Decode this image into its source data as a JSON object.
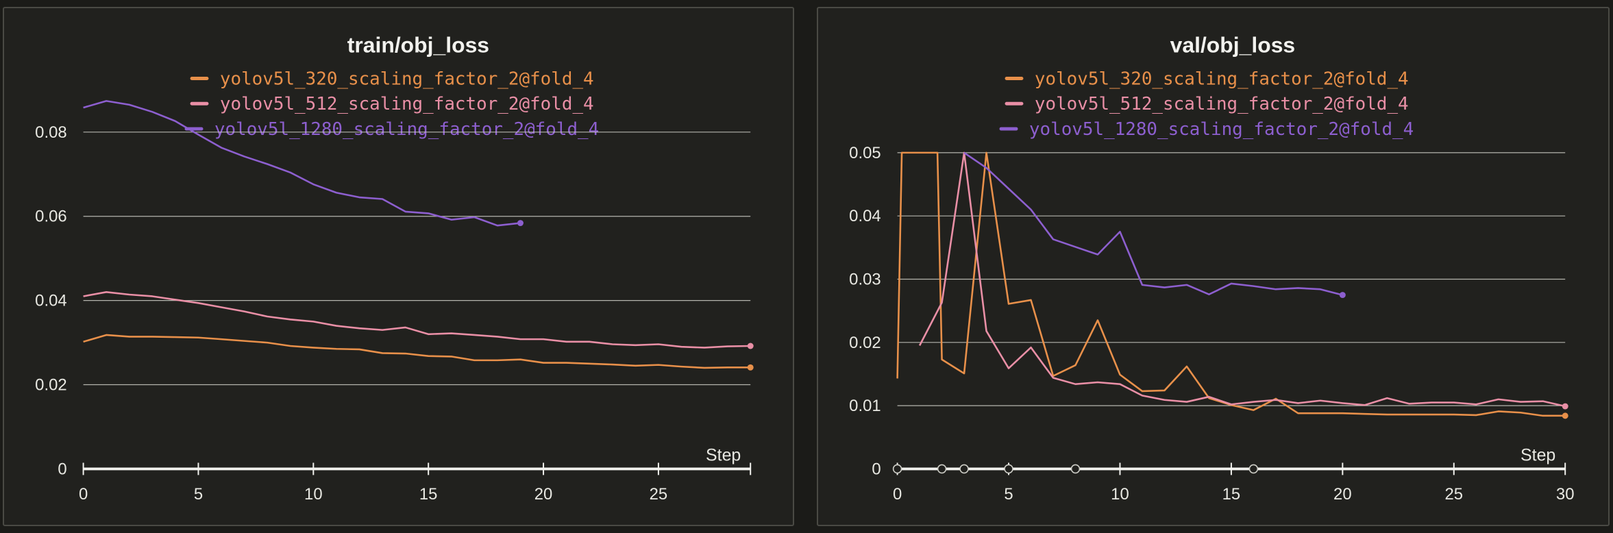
{
  "colors": {
    "bg": "#21211e",
    "grid": "#cfcfc8",
    "axis": "#f2f2ee",
    "series_320": "#e8904a",
    "series_512": "#e98fa6",
    "series_1280": "#8d5fcf"
  },
  "chart_data": [
    {
      "type": "line",
      "title": "train/obj_loss",
      "xlabel": "Step",
      "ylabel": "",
      "xlim": [
        0,
        29
      ],
      "ylim": [
        0,
        0.09
      ],
      "xticks": [
        0,
        5,
        10,
        15,
        20,
        25
      ],
      "yticks": [
        0,
        0.02,
        0.04,
        0.06,
        0.08
      ],
      "xtick_labels": [
        "0",
        "5",
        "10",
        "15",
        "20",
        "25"
      ],
      "ytick_labels": [
        "0",
        "0.02",
        "0.04",
        "0.06",
        "0.08"
      ],
      "legend_position": "top-center",
      "grid": true,
      "series": [
        {
          "name": "yolov5l_320_scaling_factor_2@fold_4",
          "color": "#e8904a",
          "x": [
            0,
            1,
            2,
            3,
            4,
            5,
            6,
            7,
            8,
            9,
            10,
            11,
            12,
            13,
            14,
            15,
            16,
            17,
            18,
            19,
            20,
            21,
            22,
            23,
            24,
            25,
            26,
            27,
            28,
            29
          ],
          "y": [
            0.0302,
            0.0318,
            0.0314,
            0.0314,
            0.0313,
            0.0312,
            0.0308,
            0.0304,
            0.03,
            0.0292,
            0.0288,
            0.0285,
            0.0284,
            0.0275,
            0.0274,
            0.0268,
            0.0267,
            0.0258,
            0.0258,
            0.026,
            0.0252,
            0.0252,
            0.025,
            0.0248,
            0.0245,
            0.0247,
            0.0243,
            0.024,
            0.0241,
            0.0241
          ]
        },
        {
          "name": "yolov5l_512_scaling_factor_2@fold_4",
          "color": "#e98fa6",
          "x": [
            0,
            1,
            2,
            3,
            4,
            5,
            6,
            7,
            8,
            9,
            10,
            11,
            12,
            13,
            14,
            15,
            16,
            17,
            18,
            19,
            20,
            21,
            22,
            23,
            24,
            25,
            26,
            27,
            28,
            29
          ],
          "y": [
            0.041,
            0.042,
            0.0414,
            0.041,
            0.0402,
            0.0394,
            0.0384,
            0.0374,
            0.0362,
            0.0355,
            0.035,
            0.034,
            0.0334,
            0.033,
            0.0336,
            0.032,
            0.0322,
            0.0318,
            0.0314,
            0.0308,
            0.0308,
            0.0302,
            0.0302,
            0.0296,
            0.0294,
            0.0296,
            0.029,
            0.0288,
            0.0291,
            0.0292
          ]
        },
        {
          "name": "yolov5l_1280_scaling_factor_2@fold_4",
          "color": "#8d5fcf",
          "x": [
            0,
            1,
            2,
            3,
            4,
            5,
            6,
            7,
            8,
            9,
            10,
            11,
            12,
            13,
            14,
            15,
            16,
            17,
            18,
            19
          ],
          "y": [
            0.0858,
            0.0874,
            0.0865,
            0.0848,
            0.0826,
            0.0794,
            0.0763,
            0.0742,
            0.0724,
            0.0704,
            0.0676,
            0.0656,
            0.0645,
            0.0641,
            0.0611,
            0.0607,
            0.0592,
            0.0598,
            0.0578,
            0.0584
          ]
        }
      ]
    },
    {
      "type": "line",
      "title": "val/obj_loss",
      "xlabel": "Step",
      "ylabel": "",
      "xlim": [
        0,
        30
      ],
      "ylim": [
        0,
        0.05
      ],
      "xticks": [
        0,
        5,
        10,
        15,
        20,
        25,
        30
      ],
      "yticks": [
        0,
        0.01,
        0.02,
        0.03,
        0.04,
        0.05
      ],
      "xtick_labels": [
        "0",
        "5",
        "10",
        "15",
        "20",
        "25",
        "30"
      ],
      "ytick_labels": [
        "0",
        "0.01",
        "0.02",
        "0.03",
        "0.04",
        "0.05"
      ],
      "legend_position": "top-center",
      "grid": true,
      "outlier_marker_steps": [
        0,
        2,
        3,
        5,
        8,
        16
      ],
      "series": [
        {
          "name": "yolov5l_320_scaling_factor_2@fold_4",
          "color": "#e8904a",
          "x": [
            0,
            0.2,
            1.8,
            2,
            3,
            4,
            5,
            6,
            7,
            8,
            9,
            10,
            11,
            12,
            13,
            14,
            15,
            16,
            17,
            18,
            19,
            20,
            21,
            22,
            23,
            24,
            25,
            26,
            27,
            28,
            29,
            30
          ],
          "y": [
            0.0143,
            0.05,
            0.05,
            0.0173,
            0.0151,
            0.05,
            0.0261,
            0.0267,
            0.0147,
            0.0164,
            0.0235,
            0.0149,
            0.0123,
            0.0124,
            0.0162,
            0.0112,
            0.0101,
            0.0093,
            0.0111,
            0.0088,
            0.0088,
            0.0088,
            0.0087,
            0.0086,
            0.0086,
            0.0086,
            0.0086,
            0.0085,
            0.0091,
            0.0089,
            0.0084,
            0.0084
          ]
        },
        {
          "name": "yolov5l_512_scaling_factor_2@fold_4",
          "color": "#e98fa6",
          "x": [
            1,
            2,
            3,
            4,
            5,
            6,
            7,
            8,
            9,
            10,
            11,
            12,
            13,
            14,
            15,
            16,
            17,
            18,
            19,
            20,
            21,
            22,
            23,
            24,
            25,
            26,
            27,
            28,
            29,
            30
          ],
          "y": [
            0.0195,
            0.0263,
            0.05,
            0.0218,
            0.0159,
            0.0192,
            0.0144,
            0.0134,
            0.0137,
            0.0134,
            0.0116,
            0.0109,
            0.0106,
            0.0114,
            0.0102,
            0.0106,
            0.0109,
            0.0104,
            0.0108,
            0.0104,
            0.0101,
            0.0112,
            0.0103,
            0.0105,
            0.0105,
            0.0102,
            0.011,
            0.0106,
            0.0107,
            0.0099
          ]
        },
        {
          "name": "yolov5l_1280_scaling_factor_2@fold_4",
          "color": "#8d5fcf",
          "x": [
            3,
            4,
            5,
            6,
            7,
            8,
            9,
            10,
            11,
            12,
            13,
            14,
            15,
            16,
            17,
            18,
            19,
            20
          ],
          "y": [
            0.05,
            0.0476,
            0.0443,
            0.041,
            0.0363,
            0.0351,
            0.0339,
            0.0375,
            0.0291,
            0.0287,
            0.0291,
            0.0276,
            0.0293,
            0.0289,
            0.0284,
            0.0286,
            0.0284,
            0.0275
          ]
        }
      ]
    }
  ]
}
